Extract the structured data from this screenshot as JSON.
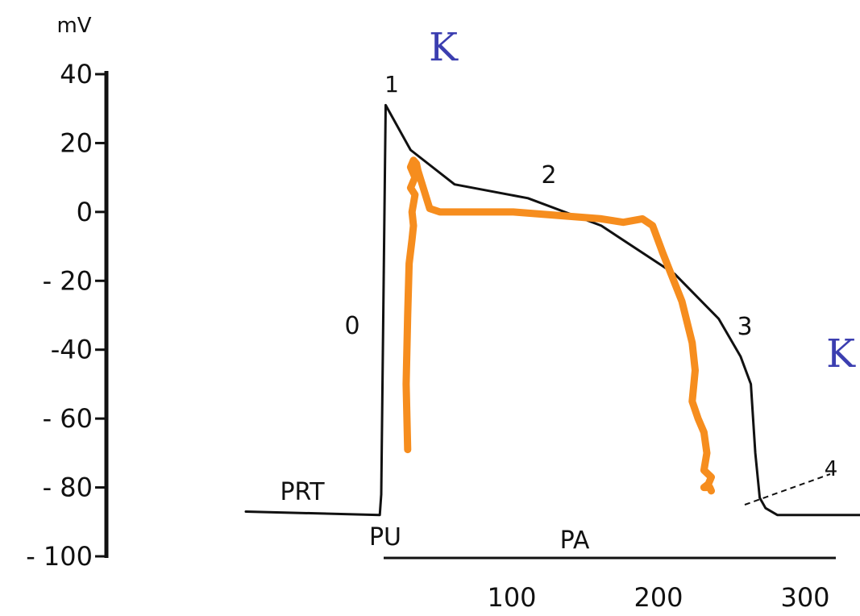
{
  "chart_data": {
    "type": "line",
    "ylabel": "mV",
    "y_ticks": [
      40,
      20,
      0,
      -20,
      -40,
      -60,
      -80,
      -100
    ],
    "y_tick_labels": [
      "40",
      "20",
      "0",
      "- 20",
      "-40",
      "- 60",
      "- 80",
      "- 100"
    ],
    "ylim": [
      -100,
      40
    ],
    "x_ticks": [
      100,
      200,
      300
    ],
    "x_tick_labels": [
      "100",
      "200",
      "300"
    ],
    "xlim": [
      0,
      330
    ],
    "grid": false,
    "series": [
      {
        "color": "#111111",
        "x": [
          -100,
          -1,
          0,
          3,
          20,
          50,
          100,
          150,
          200,
          230,
          245,
          252,
          255,
          258,
          262,
          270,
          300,
          330
        ],
        "y": [
          -87,
          -88,
          -82,
          31,
          18,
          8,
          4,
          -4,
          -18,
          -31,
          -42,
          -50,
          -70,
          -83,
          -86,
          -88,
          -88,
          -88
        ]
      },
      {
        "color": "#f68d1e",
        "x": [
          18,
          17,
          18,
          19,
          21,
          22,
          21,
          23,
          20,
          23,
          20,
          22,
          24,
          25,
          33,
          40,
          60,
          90,
          120,
          150,
          165,
          178,
          185,
          192,
          205,
          212,
          214,
          212,
          216,
          220,
          222,
          220,
          225,
          223,
          220,
          224,
          225
        ],
        "y": [
          -69,
          -50,
          -30,
          -15,
          -8,
          -4,
          0,
          5,
          7,
          10,
          13,
          15,
          14,
          12,
          1,
          0,
          0,
          0,
          -1,
          -2,
          -3,
          -2,
          -4,
          -12,
          -26,
          -38,
          -46,
          -55,
          -60,
          -64,
          -70,
          -75,
          -77,
          -79,
          -80,
          -80,
          -81
        ]
      }
    ],
    "annotations": {
      "phase_labels": [
        "0",
        "1",
        "2",
        "3",
        "4"
      ],
      "PRT": "PRT",
      "PU": "PU",
      "PA": "PA",
      "K_top": "K",
      "K_right": "K"
    },
    "colors": {
      "ink": "#111111",
      "orange": "#f68d1e",
      "k_label": "#3b3eb0"
    }
  }
}
